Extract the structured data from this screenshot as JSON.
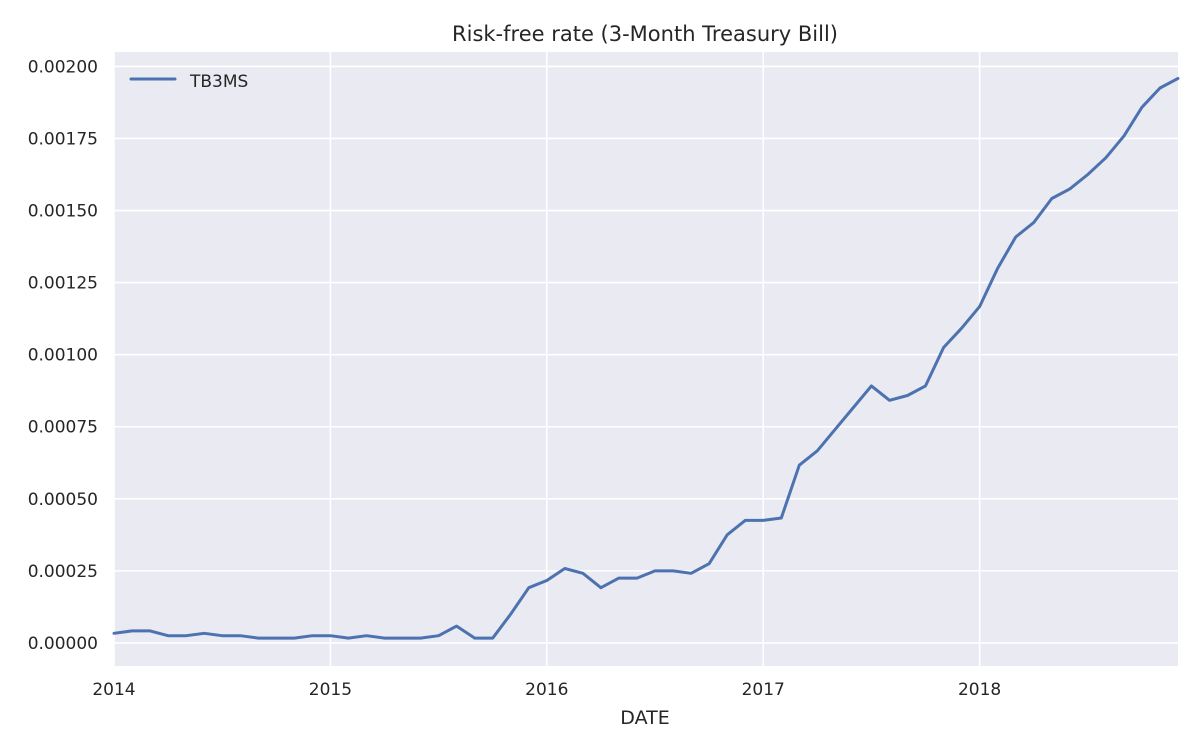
{
  "chart_data": {
    "type": "line",
    "title": "Risk-free rate (3-Month Treasury Bill)",
    "xlabel": "DATE",
    "ylabel": "",
    "x_tick_labels": [
      "2014",
      "2015",
      "2016",
      "2017",
      "2018"
    ],
    "y_tick_labels": [
      "0.00000",
      "0.00025",
      "0.00050",
      "0.00075",
      "0.00100",
      "0.00125",
      "0.00150",
      "0.00175",
      "0.00200"
    ],
    "xlim": [
      "2014-01",
      "2018-12"
    ],
    "ylim": [
      -8e-05,
      0.00205
    ],
    "grid": true,
    "legend_position": "top-left",
    "colors": {
      "background": "#eaeaf2",
      "grid": "#ffffff",
      "series": "#4c72b0"
    },
    "x": [
      "2014-01",
      "2014-02",
      "2014-03",
      "2014-04",
      "2014-05",
      "2014-06",
      "2014-07",
      "2014-08",
      "2014-09",
      "2014-10",
      "2014-11",
      "2014-12",
      "2015-01",
      "2015-02",
      "2015-03",
      "2015-04",
      "2015-05",
      "2015-06",
      "2015-07",
      "2015-08",
      "2015-09",
      "2015-10",
      "2015-11",
      "2015-12",
      "2016-01",
      "2016-02",
      "2016-03",
      "2016-04",
      "2016-05",
      "2016-06",
      "2016-07",
      "2016-08",
      "2016-09",
      "2016-10",
      "2016-11",
      "2016-12",
      "2017-01",
      "2017-02",
      "2017-03",
      "2017-04",
      "2017-05",
      "2017-06",
      "2017-07",
      "2017-08",
      "2017-09",
      "2017-10",
      "2017-11",
      "2017-12",
      "2018-01",
      "2018-02",
      "2018-03",
      "2018-04",
      "2018-05",
      "2018-06",
      "2018-07",
      "2018-08",
      "2018-09",
      "2018-10",
      "2018-11",
      "2018-12"
    ],
    "series": [
      {
        "name": "TB3MS",
        "values": [
          3.33e-05,
          4.17e-05,
          4.17e-05,
          2.5e-05,
          2.5e-05,
          3.33e-05,
          2.5e-05,
          2.5e-05,
          1.67e-05,
          1.67e-05,
          1.67e-05,
          2.5e-05,
          2.5e-05,
          1.67e-05,
          2.5e-05,
          1.67e-05,
          1.67e-05,
          1.67e-05,
          2.5e-05,
          5.83e-05,
          1.67e-05,
          1.67e-05,
          0.0001,
          0.0001917,
          0.0002167,
          0.0002583,
          0.0002417,
          0.0001917,
          0.000225,
          0.000225,
          0.00025,
          0.00025,
          0.0002417,
          0.000275,
          0.000375,
          0.000425,
          0.000425,
          0.0004333,
          0.0006167,
          0.0006667,
          0.0007417,
          0.0008167,
          0.0008917,
          0.0008417,
          0.0008583,
          0.0008917,
          0.001025,
          0.0010917,
          0.0011667,
          0.0013,
          0.0014083,
          0.0014583,
          0.0015417,
          0.001575,
          0.001625,
          0.0016833,
          0.0017583,
          0.0018583,
          0.001925,
          0.0019583
        ]
      }
    ]
  }
}
